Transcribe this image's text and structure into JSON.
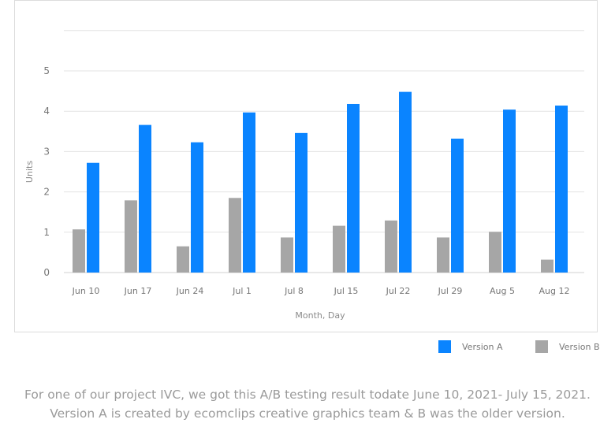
{
  "chart_data": {
    "type": "bar",
    "categories": [
      "Jun 10",
      "Jun 17",
      "Jun 24",
      "Jul 1",
      "Jul 8",
      "Jul 15",
      "Jul 22",
      "Jul 29",
      "Aug 5",
      "Aug 12"
    ],
    "series": [
      {
        "name": "Version B",
        "color": "#a6a6a6",
        "values": [
          1.07,
          1.79,
          0.65,
          1.85,
          0.87,
          1.16,
          1.29,
          0.87,
          1.01,
          0.32
        ]
      },
      {
        "name": "Version A",
        "color": "#0a84ff",
        "values": [
          2.72,
          3.66,
          3.23,
          3.97,
          3.46,
          4.18,
          4.48,
          3.32,
          4.04,
          4.14
        ]
      }
    ],
    "yticks": [
      0,
      1,
      2,
      3,
      4,
      5
    ],
    "ylim": [
      0,
      6
    ],
    "xlabel": "Month, Day",
    "ylabel": "Units",
    "title": "",
    "grid": true,
    "legend_position": "bottom-right"
  },
  "legend": {
    "a_label": "Version A",
    "b_label": "Version B"
  },
  "caption": "For one of our project IVC, we got this A/B testing result todate June 10, 2021- July 15, 2021. Version A is created by ecomclips creative graphics team & B was the older version."
}
